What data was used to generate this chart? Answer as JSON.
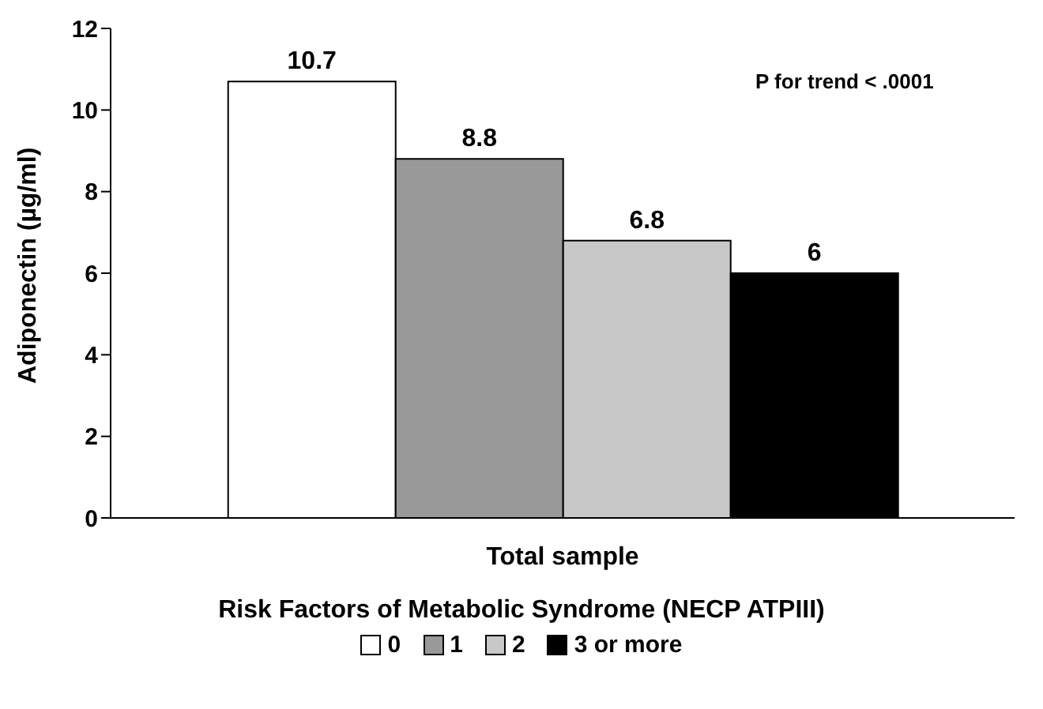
{
  "chart_data": {
    "type": "bar",
    "categories": [
      "Total sample"
    ],
    "series": [
      {
        "name": "0",
        "color": "#ffffff",
        "values": [
          10.7
        ]
      },
      {
        "name": "1",
        "color": "#999999",
        "values": [
          8.8
        ]
      },
      {
        "name": "2",
        "color": "#c8c8c8",
        "values": [
          6.8
        ]
      },
      {
        "name": "3 or more",
        "color": "#000000",
        "values": [
          6
        ]
      }
    ],
    "ylabel": "Adiponectin (µg/ml)",
    "legend_title": "Risk Factors of Metabolic Syndrome (NECP ATPIII)",
    "ylim": [
      0,
      12
    ],
    "yticks": [
      0,
      2,
      4,
      6,
      8,
      10,
      12
    ],
    "data_labels": true,
    "grid": false,
    "legend": "bottom",
    "annotations": [
      "P for trend < .0001"
    ]
  }
}
